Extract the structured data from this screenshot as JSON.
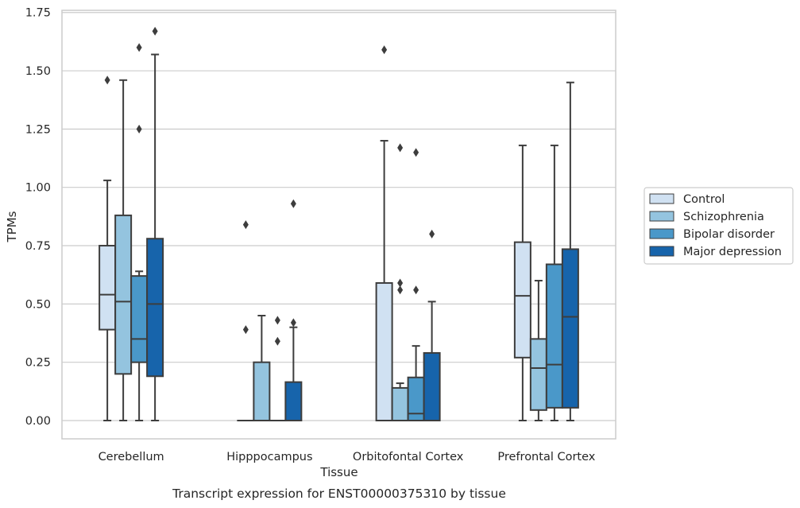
{
  "chart_data": {
    "type": "box",
    "title": "",
    "caption": "Transcript expression for ENST00000375310 by tissue",
    "xlabel": "Tissue",
    "ylabel": "TPMs",
    "ylim": [
      -0.08,
      1.75
    ],
    "yticks": [
      0.0,
      0.25,
      0.5,
      0.75,
      1.0,
      1.25,
      1.5,
      1.75
    ],
    "ytick_labels": [
      "0.00",
      "0.25",
      "0.50",
      "0.75",
      "1.00",
      "1.25",
      "1.50",
      "1.75"
    ],
    "grid": "horizontal",
    "legend_position": "right",
    "categories": [
      "Cerebellum",
      "Hipppocampus",
      "Orbitofontal Cortex",
      "Prefrontal Cortex"
    ],
    "series": [
      {
        "name": "Control",
        "color": "#d0e1f2",
        "boxes": [
          {
            "whisker_low": 0.0,
            "q1": 0.39,
            "median": 0.54,
            "q3": 0.75,
            "whisker_high": 1.03,
            "outliers": [
              1.46
            ]
          },
          {
            "whisker_low": 0.0,
            "q1": 0.0,
            "median": 0.0,
            "q3": 0.0,
            "whisker_high": 0.0,
            "outliers": [
              0.84,
              0.39
            ]
          },
          {
            "whisker_low": 0.0,
            "q1": 0.0,
            "median": 0.0,
            "q3": 0.59,
            "whisker_high": 1.2,
            "outliers": [
              1.59
            ]
          },
          {
            "whisker_low": 0.0,
            "q1": 0.27,
            "median": 0.535,
            "q3": 0.765,
            "whisker_high": 1.18,
            "outliers": []
          }
        ]
      },
      {
        "name": "Schizophrenia",
        "color": "#94c4df",
        "boxes": [
          {
            "whisker_low": 0.0,
            "q1": 0.2,
            "median": 0.51,
            "q3": 0.88,
            "whisker_high": 1.46,
            "outliers": []
          },
          {
            "whisker_low": 0.0,
            "q1": 0.0,
            "median": 0.0,
            "q3": 0.25,
            "whisker_high": 0.45,
            "outliers": []
          },
          {
            "whisker_low": 0.0,
            "q1": 0.0,
            "median": 0.0,
            "q3": 0.14,
            "whisker_high": 0.16,
            "outliers": [
              1.17,
              0.59,
              0.56
            ]
          },
          {
            "whisker_low": 0.0,
            "q1": 0.045,
            "median": 0.225,
            "q3": 0.35,
            "whisker_high": 0.6,
            "outliers": []
          }
        ]
      },
      {
        "name": "Bipolar disorder",
        "color": "#4a98c9",
        "boxes": [
          {
            "whisker_low": 0.0,
            "q1": 0.25,
            "median": 0.35,
            "q3": 0.62,
            "whisker_high": 0.64,
            "outliers": [
              1.6,
              1.25
            ]
          },
          {
            "whisker_low": 0.0,
            "q1": 0.0,
            "median": 0.0,
            "q3": 0.0,
            "whisker_high": 0.0,
            "outliers": [
              0.43,
              0.34
            ]
          },
          {
            "whisker_low": 0.0,
            "q1": 0.0,
            "median": 0.03,
            "q3": 0.185,
            "whisker_high": 0.32,
            "outliers": [
              1.15,
              0.56
            ]
          },
          {
            "whisker_low": 0.0,
            "q1": 0.055,
            "median": 0.24,
            "q3": 0.67,
            "whisker_high": 1.18,
            "outliers": []
          }
        ]
      },
      {
        "name": "Major depression",
        "color": "#1764ab",
        "boxes": [
          {
            "whisker_low": 0.0,
            "q1": 0.19,
            "median": 0.5,
            "q3": 0.78,
            "whisker_high": 1.57,
            "outliers": [
              1.67
            ]
          },
          {
            "whisker_low": 0.0,
            "q1": 0.0,
            "median": 0.0,
            "q3": 0.165,
            "whisker_high": 0.4,
            "outliers": [
              0.93,
              0.42
            ]
          },
          {
            "whisker_low": 0.0,
            "q1": 0.0,
            "median": 0.0,
            "q3": 0.29,
            "whisker_high": 0.51,
            "outliers": [
              0.8
            ]
          },
          {
            "whisker_low": 0.0,
            "q1": 0.055,
            "median": 0.445,
            "q3": 0.735,
            "whisker_high": 1.45,
            "outliers": []
          }
        ]
      }
    ]
  }
}
